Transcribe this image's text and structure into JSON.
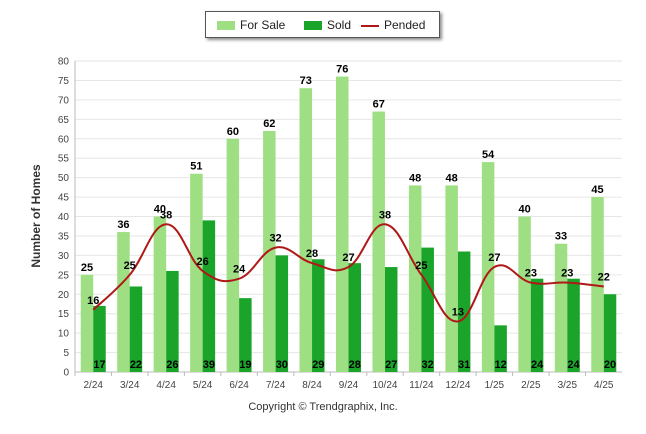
{
  "chart_data": {
    "type": "bar",
    "title": "",
    "xlabel": "",
    "ylabel": "Number of Homes",
    "ylim": [
      0,
      80
    ],
    "ytick_step": 5,
    "grid": true,
    "legend_position": "top-center",
    "categories": [
      "2/24",
      "3/24",
      "4/24",
      "5/24",
      "6/24",
      "7/24",
      "8/24",
      "9/24",
      "10/24",
      "11/24",
      "12/24",
      "1/25",
      "2/25",
      "3/25",
      "4/25"
    ],
    "series": [
      {
        "name": "For Sale",
        "type": "bar",
        "color": "#9fdf83",
        "values": [
          25,
          36,
          40,
          51,
          60,
          62,
          73,
          76,
          67,
          48,
          48,
          54,
          40,
          33,
          45
        ]
      },
      {
        "name": "Sold",
        "type": "bar",
        "color": "#1aa52a",
        "values": [
          17,
          22,
          26,
          39,
          19,
          30,
          29,
          28,
          27,
          32,
          31,
          12,
          24,
          24,
          20
        ]
      },
      {
        "name": "Pended",
        "type": "line",
        "color": "#b01818",
        "values": [
          16,
          25,
          38,
          26,
          24,
          32,
          28,
          27,
          38,
          25,
          13,
          27,
          23,
          23,
          22
        ]
      }
    ]
  },
  "footer": {
    "copyright": "Copyright © Trendgraphix, Inc."
  }
}
